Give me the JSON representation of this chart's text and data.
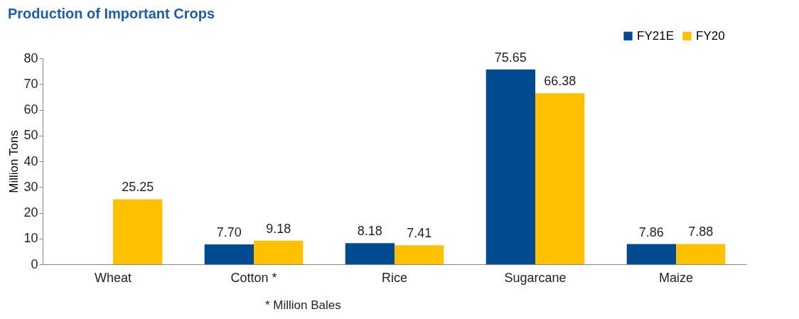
{
  "chart_data": {
    "type": "bar",
    "title": "Production of Important Crops",
    "ylabel": "Million Tons",
    "categories": [
      "Wheat",
      "Cotton *",
      "Rice",
      "Sugarcane",
      "Maize"
    ],
    "series": [
      {
        "name": "FY21E",
        "color": "#004a8f",
        "values": [
          null,
          7.7,
          8.18,
          75.65,
          7.86
        ],
        "value_labels": [
          null,
          "7.70",
          "8.18",
          "75.65",
          "7.86"
        ]
      },
      {
        "name": "FY20",
        "color": "#ffc000",
        "values": [
          25.25,
          9.18,
          7.41,
          66.38,
          7.88
        ],
        "value_labels": [
          "25.25",
          "9.18",
          "7.41",
          "66.38",
          "7.88"
        ]
      }
    ],
    "ylim": [
      0,
      80
    ],
    "yticks": [
      0,
      10,
      20,
      30,
      40,
      50,
      60,
      70,
      80
    ],
    "grid": false,
    "legend": "top right",
    "annotations": [
      "* Million Bales"
    ]
  }
}
